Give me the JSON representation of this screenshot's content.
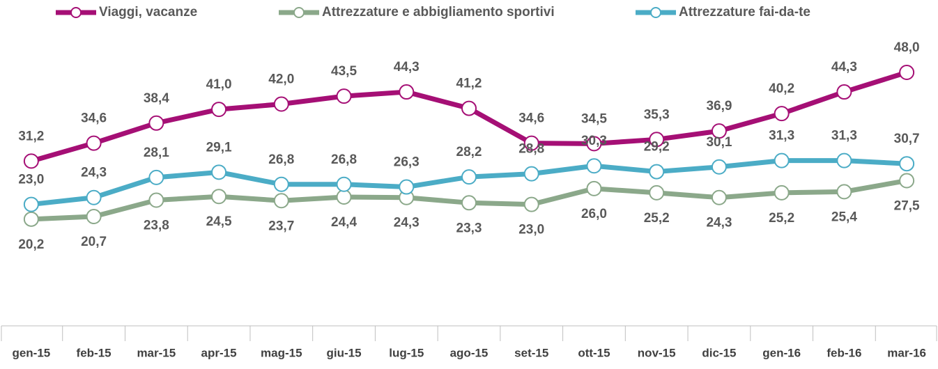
{
  "chart_data": {
    "type": "line",
    "categories": [
      "gen-15",
      "feb-15",
      "mar-15",
      "apr-15",
      "mag-15",
      "giu-15",
      "lug-15",
      "ago-15",
      "set-15",
      "ott-15",
      "nov-15",
      "dic-15",
      "gen-16",
      "feb-16",
      "mar-16"
    ],
    "series": [
      {
        "name": "Viaggi, vacanze",
        "color": "#a50f75",
        "label_side": "above",
        "values": [
          31.2,
          34.6,
          38.4,
          41.0,
          42.0,
          43.5,
          44.3,
          41.2,
          34.6,
          34.5,
          35.3,
          36.9,
          40.2,
          44.3,
          48.0
        ],
        "value_labels": [
          "31,2",
          "34,6",
          "38,4",
          "41,0",
          "42,0",
          "43,5",
          "44,3",
          "41,2",
          "34,6",
          "34,5",
          "35,3",
          "36,9",
          "40,2",
          "44,3",
          "48,0"
        ]
      },
      {
        "name": "Attrezzature e abbigliamento sportivi",
        "color": "#8ba88a",
        "label_side": "below",
        "values": [
          20.2,
          20.7,
          23.8,
          24.5,
          23.7,
          24.4,
          24.3,
          23.3,
          23.0,
          26.0,
          25.2,
          24.3,
          25.2,
          25.4,
          27.5
        ],
        "value_labels": [
          "20,2",
          "20,7",
          "23,8",
          "24,5",
          "23,7",
          "24,4",
          "24,3",
          "23,3",
          "23,0",
          "26,0",
          "25,2",
          "24,3",
          "25,2",
          "25,4",
          "27,5"
        ]
      },
      {
        "name": "Attrezzature fai-da-te",
        "color": "#4bacc6",
        "label_side": "above",
        "values": [
          23.0,
          24.3,
          28.1,
          29.1,
          26.8,
          26.8,
          26.3,
          28.2,
          28.8,
          30.3,
          29.2,
          30.1,
          31.3,
          31.3,
          30.7
        ],
        "value_labels": [
          "23,0",
          "24,3",
          "28,1",
          "29,1",
          "26,8",
          "26,8",
          "26,3",
          "28,2",
          "28,8",
          "30,3",
          "29,2",
          "30,1",
          "31,3",
          "31,3",
          "30,7"
        ]
      }
    ],
    "ylim": [
      0,
      60
    ]
  }
}
